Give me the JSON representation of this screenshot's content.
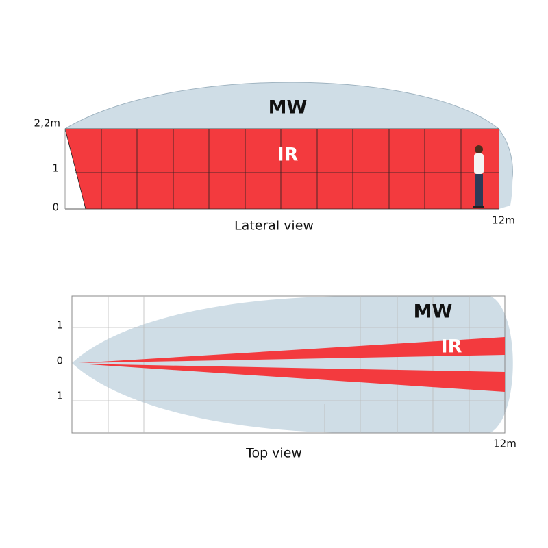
{
  "lateral_view": {
    "title": "Lateral view",
    "y_labels": [
      "2,2m",
      "1",
      "0"
    ],
    "x_end_label": "12m",
    "mw_label": "MW",
    "ir_label": "IR"
  },
  "top_view": {
    "title": "Top view",
    "y_labels": [
      "1",
      "0",
      "1"
    ],
    "x_end_label": "12m",
    "mw_label": "MW",
    "ir_label": "IR"
  }
}
